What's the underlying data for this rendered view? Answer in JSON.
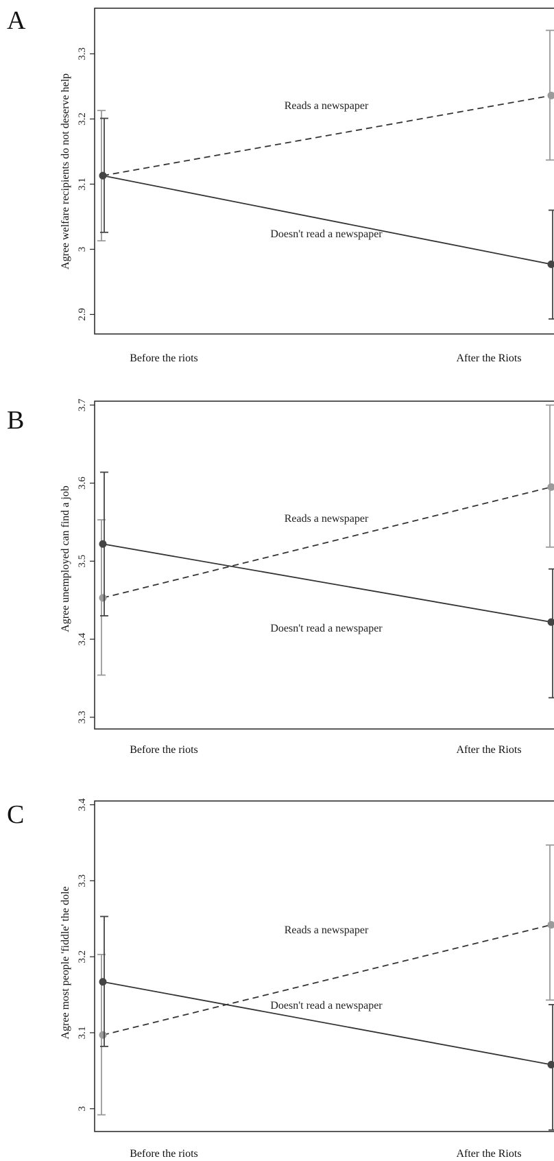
{
  "chart_data": [
    {
      "panel": "A",
      "type": "line",
      "ylabel": "Agree welfare recipients do not deserve help",
      "categories": [
        "Before the riots",
        "After the Riots"
      ],
      "yticks": [
        2.9,
        3,
        3.1,
        3.2,
        3.3
      ],
      "ytick_labels": [
        "2.9",
        "3",
        "3.1",
        "3.2",
        "3.3"
      ],
      "ylim": [
        2.87,
        3.37
      ],
      "series": [
        {
          "name": "Reads a newspaper",
          "values": [
            3.113,
            3.236
          ],
          "ci_low": [
            3.013,
            3.137
          ],
          "ci_high": [
            3.213,
            3.336
          ]
        },
        {
          "name": "Doesn't read a newspaper",
          "values": [
            3.113,
            2.977
          ],
          "ci_low": [
            3.026,
            2.893
          ],
          "ci_high": [
            3.201,
            3.06
          ]
        }
      ]
    },
    {
      "panel": "B",
      "type": "line",
      "ylabel": "Agree unemployed can find a job",
      "categories": [
        "Before the riots",
        "After the Riots"
      ],
      "yticks": [
        3.3,
        3.4,
        3.5,
        3.6,
        3.7
      ],
      "ytick_labels": [
        "3.3",
        "3.4",
        "3.5",
        "3.6",
        "3.7"
      ],
      "ylim": [
        3.285,
        3.705
      ],
      "series": [
        {
          "name": "Reads a newspaper",
          "values": [
            3.453,
            3.595
          ],
          "ci_low": [
            3.354,
            3.518
          ],
          "ci_high": [
            3.553,
            3.7
          ]
        },
        {
          "name": "Doesn't read a newspaper",
          "values": [
            3.522,
            3.422
          ],
          "ci_low": [
            3.43,
            3.325
          ],
          "ci_high": [
            3.614,
            3.49
          ]
        }
      ]
    },
    {
      "panel": "C",
      "type": "line",
      "ylabel": "Agree most people 'fiddle' the dole",
      "categories": [
        "Before the riots",
        "After the Riots"
      ],
      "yticks": [
        3,
        3.1,
        3.2,
        3.3,
        3.4
      ],
      "ytick_labels": [
        "3",
        "3.1",
        "3.2",
        "3.3",
        "3.4"
      ],
      "ylim": [
        2.97,
        3.405
      ],
      "series": [
        {
          "name": "Reads a newspaper",
          "values": [
            3.097,
            3.242
          ],
          "ci_low": [
            2.992,
            3.143
          ],
          "ci_high": [
            3.203,
            3.347
          ]
        },
        {
          "name": "Doesn't read a newspaper",
          "values": [
            3.167,
            3.058
          ],
          "ci_low": [
            3.082,
            2.972
          ],
          "ci_high": [
            3.253,
            3.137
          ]
        }
      ]
    }
  ],
  "colors": {
    "reads_newspaper": "#9a9a9a",
    "not_reads_newspaper": "#444444",
    "axis": "#222222"
  }
}
